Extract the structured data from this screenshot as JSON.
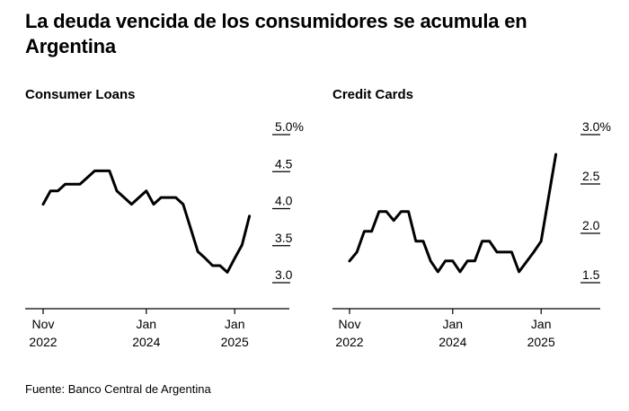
{
  "title": "La deuda vencida de los consumidores se acumula en Argentina",
  "source": "Fuente: Banco Central de Argentina",
  "colors": {
    "line": "#000000",
    "text": "#000000",
    "axis": "#000000"
  },
  "chart_data": [
    {
      "type": "line",
      "title": "Consumer Loans",
      "x_start": "2022-11",
      "y_unit": "%",
      "ylim": [
        3.0,
        5.0
      ],
      "y_ticks": [
        "5.0%",
        "4.5",
        "4.0",
        "3.5",
        "3.0"
      ],
      "y_tick_values": [
        5.0,
        4.5,
        4.0,
        3.5,
        3.0
      ],
      "x_ticks": [
        {
          "month_index": 0,
          "label": [
            "Nov",
            "2022"
          ]
        },
        {
          "month_index": 14,
          "label": [
            "Jan",
            "2024"
          ]
        },
        {
          "month_index": 26,
          "label": [
            "Jan",
            "2025"
          ]
        }
      ],
      "grid": false,
      "series": [
        {
          "values": [
            4.06,
            4.24,
            4.24,
            4.33,
            4.33,
            4.33,
            4.42,
            4.51,
            4.51,
            4.51,
            4.24,
            4.15,
            4.06,
            4.15,
            4.24,
            4.06,
            4.15,
            4.15,
            4.15,
            4.06,
            3.74,
            3.42,
            3.33,
            3.23,
            3.23,
            3.14,
            3.33,
            3.51,
            3.9
          ]
        }
      ]
    },
    {
      "type": "line",
      "title": "Credit Cards",
      "x_start": "2022-11",
      "y_unit": "%",
      "ylim": [
        1.5,
        3.0
      ],
      "y_ticks": [
        "3.0%",
        "2.5",
        "2.0",
        "1.5"
      ],
      "y_tick_values": [
        3.0,
        2.5,
        2.0,
        1.5
      ],
      "x_ticks": [
        {
          "month_index": 0,
          "label": [
            "Nov",
            "2022"
          ]
        },
        {
          "month_index": 14,
          "label": [
            "Jan",
            "2024"
          ]
        },
        {
          "month_index": 26,
          "label": [
            "Jan",
            "2025"
          ]
        }
      ],
      "grid": false,
      "series": [
        {
          "values": [
            1.72,
            1.81,
            2.02,
            2.02,
            2.22,
            2.22,
            2.13,
            2.22,
            2.22,
            1.92,
            1.92,
            1.72,
            1.61,
            1.72,
            1.72,
            1.61,
            1.72,
            1.72,
            1.92,
            1.92,
            1.81,
            1.81,
            1.81,
            1.61,
            1.71,
            1.81,
            1.92,
            2.36,
            2.8
          ]
        }
      ]
    }
  ]
}
